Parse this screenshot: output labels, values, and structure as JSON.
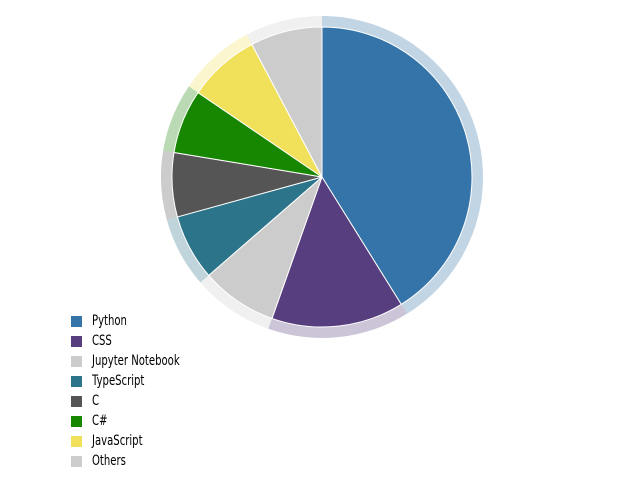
{
  "chart_data": {
    "type": "pie",
    "title": "",
    "legend_position": "bottom-left",
    "slices": [
      {
        "label": "Python",
        "value": 44.1,
        "color": "#3574a8"
      },
      {
        "label": "CSS",
        "value": 15.3,
        "color": "#573e7e"
      },
      {
        "label": "Jupyter Notebook",
        "value": 8.8,
        "color": "#cccccc"
      },
      {
        "label": "TypeScript",
        "value": 7.6,
        "color": "#2b7489"
      },
      {
        "label": "C",
        "value": 7.4,
        "color": "#555555"
      },
      {
        "label": "C#",
        "value": 7.4,
        "color": "#178600"
      },
      {
        "label": "JavaScript",
        "value": 8.3,
        "color": "#f1e05a"
      },
      {
        "label": "Others",
        "value": 8.3,
        "color": "#cccccc"
      }
    ]
  }
}
